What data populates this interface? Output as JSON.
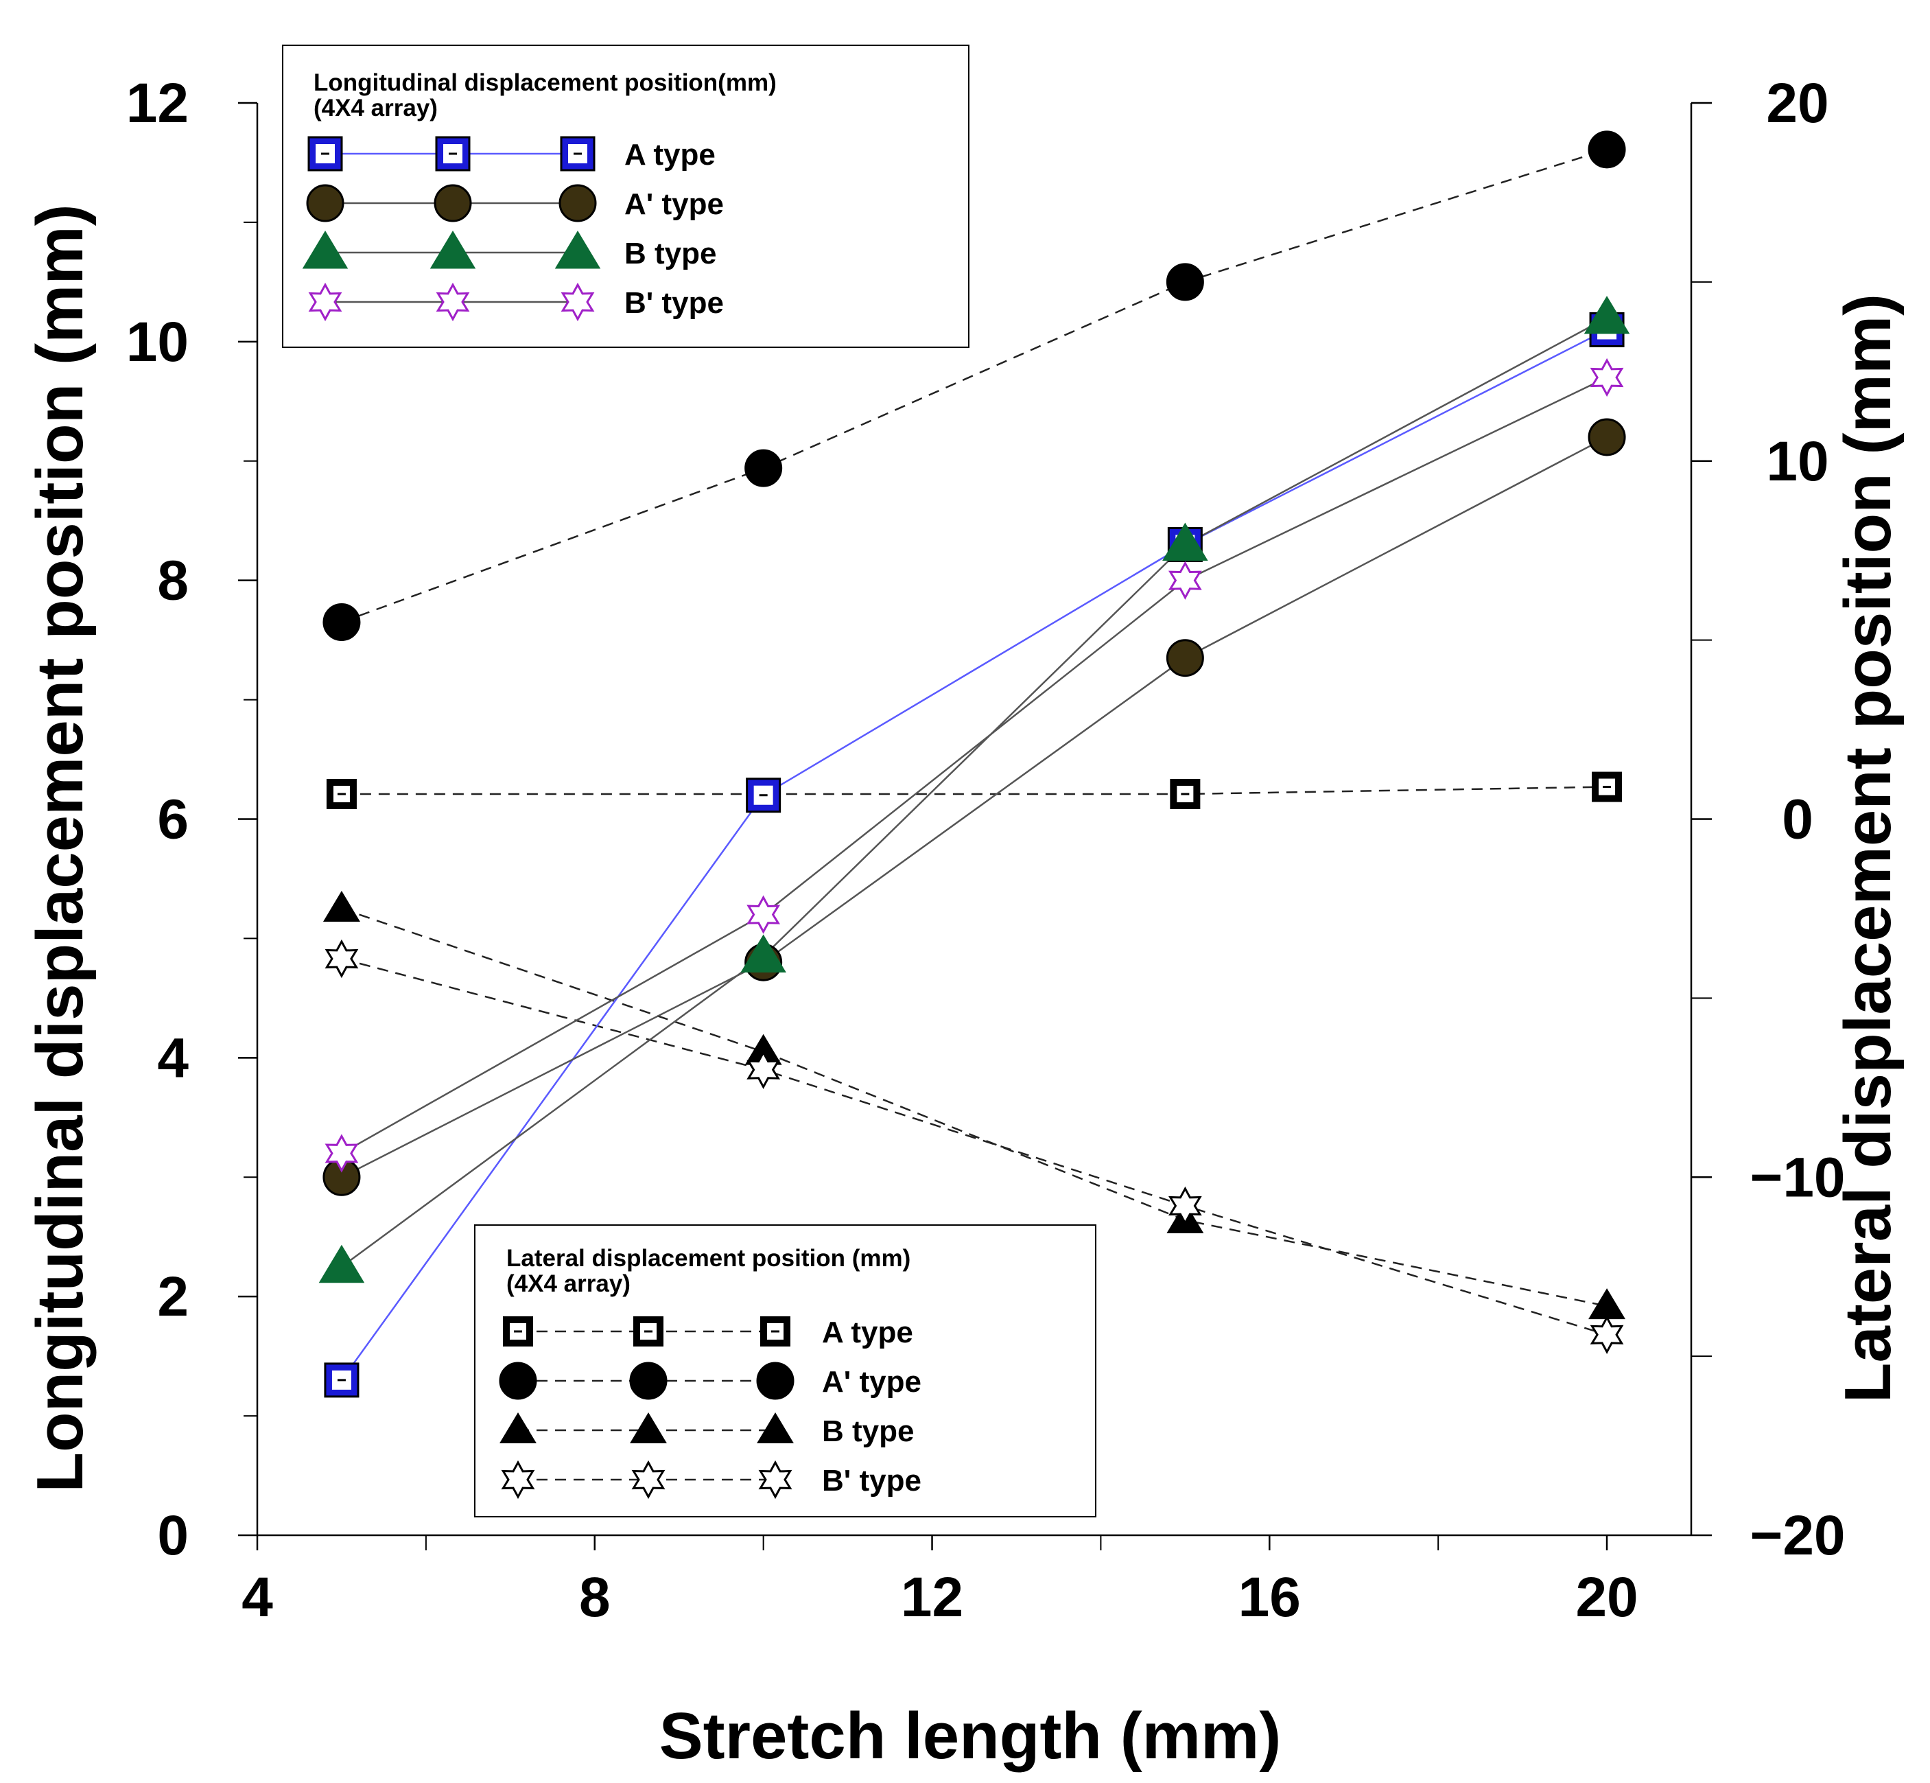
{
  "chart_data": {
    "type": "line",
    "x_axis": {
      "label": "Stretch length (mm)",
      "range": [
        4,
        21
      ],
      "ticks": [
        4,
        8,
        12,
        16,
        20
      ],
      "minor_ticks": [
        6,
        10,
        14,
        18
      ]
    },
    "y_axis_left": {
      "label": "Longitudinal displacement position (mm)",
      "range": [
        0,
        12
      ],
      "ticks": [
        0,
        2,
        4,
        6,
        8,
        10,
        12
      ],
      "minor_ticks": [
        1,
        3,
        5,
        7,
        9,
        11
      ]
    },
    "y_axis_right": {
      "label": "Lateral displacement position (mm)",
      "range": [
        -20,
        20
      ],
      "ticks": [
        -20,
        -10,
        0,
        10,
        20
      ],
      "tick_labels": [
        "−20",
        "−10",
        "0",
        "10",
        "20"
      ],
      "minor_ticks": [
        -15,
        -5,
        5,
        15
      ]
    },
    "x": [
      5,
      10,
      15,
      20
    ],
    "longitudinal_series": [
      {
        "name": "A type",
        "marker": "square",
        "color": "#1a1ad6",
        "line_color": "#5a5aff",
        "axis": "left",
        "values": [
          1.3,
          6.2,
          8.3,
          10.1
        ]
      },
      {
        "name": "A' type",
        "marker": "circle",
        "color": "#3b3010",
        "line_color": "#555555",
        "axis": "left",
        "values": [
          3.0,
          4.8,
          7.35,
          9.2
        ]
      },
      {
        "name": "B type",
        "marker": "triangle",
        "color": "#0b6b35",
        "line_color": "#555555",
        "axis": "left",
        "values": [
          2.25,
          4.85,
          8.3,
          10.2
        ]
      },
      {
        "name": "B' type",
        "marker": "star",
        "color": "#a020c8",
        "line_color": "#555555",
        "axis": "left",
        "values": [
          3.2,
          5.2,
          8.0,
          9.7
        ]
      }
    ],
    "lateral_series": [
      {
        "name": "A type",
        "marker": "square",
        "color": "#000000",
        "axis": "right",
        "values": [
          0.7,
          0.7,
          0.7,
          0.9
        ]
      },
      {
        "name": "A' type",
        "marker": "circle",
        "color": "#000000",
        "axis": "right",
        "values": [
          5.5,
          9.8,
          15.0,
          18.7
        ]
      },
      {
        "name": "B type",
        "marker": "triangle",
        "color": "#000000",
        "axis": "right",
        "values": [
          -2.5,
          -6.5,
          -11.2,
          -13.6
        ]
      },
      {
        "name": "B' type",
        "marker": "star",
        "color": "#000000",
        "axis": "right",
        "values": [
          -3.9,
          -7.0,
          -10.8,
          -14.4
        ]
      }
    ],
    "legend_longitudinal": {
      "title_line1": "Longitudinal displacement position(mm)",
      "title_line2": "(4X4 array)",
      "position": "top-left"
    },
    "legend_lateral": {
      "title_line1": "Lateral displacement position (mm)",
      "title_line2": "(4X4 array)",
      "position": "bottom-center"
    }
  }
}
